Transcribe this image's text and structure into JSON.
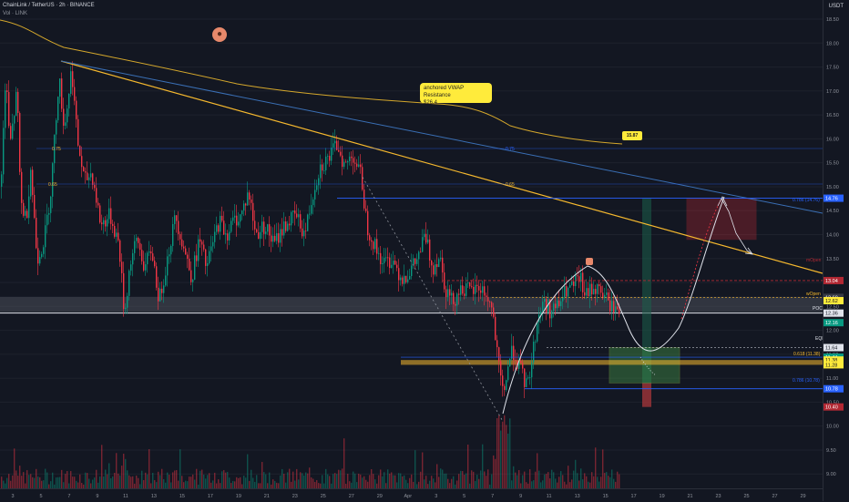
{
  "header": {
    "title": "ChainLink / TetherUS · 2h · BINANCE",
    "indicator": "Vol · LINK",
    "currency": "USDT"
  },
  "annotations": {
    "vwap_note_line1": "anchored VWAP Resistance",
    "vwap_note_line2": "$26.4",
    "vwap_value": "15.87",
    "level_075_left": "0.75",
    "level_065_left": "0.65",
    "level_075_mid": "0.75",
    "level_065_mid": "0.65",
    "fib_0786_top": "0.786 (14.76)",
    "fib_0618": "0.618 (11.38)",
    "fib_0786_bottom": "0.786 (10.78)",
    "mopen_top": "mOpen",
    "wopen": "wOpen",
    "poc": "POC",
    "eq": "EQL"
  },
  "price_tags": [
    {
      "label": "14.76",
      "color": "#2962ff"
    },
    {
      "label": "13.04",
      "color": "#b22833"
    },
    {
      "label": "12.69",
      "color": "#363a45"
    },
    {
      "label": "12.62",
      "color": "#ffeb3b"
    },
    {
      "label": "12.36",
      "color": "#e0e3eb"
    },
    {
      "label": "12.16",
      "color": "#089981"
    },
    {
      "label": "11.64",
      "color": "#e0e3eb"
    },
    {
      "label": "11.44",
      "color": "#089981"
    },
    {
      "label": "11.38",
      "color": "#ffeb3b"
    },
    {
      "label": "11.28",
      "color": "#ffeb3b"
    },
    {
      "label": "10.78",
      "color": "#2962ff"
    },
    {
      "label": "10.40",
      "color": "#b22833"
    }
  ],
  "colors": {
    "up": "#089981",
    "down": "#f23645",
    "vwap": "#d4a72c",
    "trend_orange": "#f5b82e",
    "trend_blue": "#3a6fb5",
    "fib_blue": "#2962ff",
    "sell_box": "#b22833",
    "buy_box": "#4caf50"
  },
  "chart_data": {
    "type": "candlestick",
    "symbol": "LINK/USDT",
    "timeframe": "2h",
    "y_axis_ticks": [
      18.5,
      18.0,
      17.5,
      17.0,
      16.5,
      16.0,
      15.5,
      15.0,
      14.5,
      14.0,
      13.5,
      13.0,
      12.5,
      12.0,
      11.5,
      11.0,
      10.5,
      10.0,
      9.5,
      9.0
    ],
    "x_axis_ticks": [
      "3",
      "5",
      "7",
      "9",
      "11",
      "13",
      "15",
      "17",
      "19",
      "21",
      "23",
      "25",
      "27",
      "29",
      "Apr",
      "3",
      "5",
      "7",
      "9",
      "11",
      "13",
      "15",
      "17",
      "19",
      "21",
      "23",
      "25",
      "27",
      "29"
    ],
    "ylim": [
      8.7,
      18.9
    ],
    "price_path": [
      [
        0,
        15.0
      ],
      [
        6,
        17.35
      ],
      [
        10,
        15.8
      ],
      [
        18,
        17.0
      ],
      [
        22,
        14.7
      ],
      [
        28,
        14.3
      ],
      [
        33,
        15.4
      ],
      [
        40,
        13.5
      ],
      [
        48,
        13.9
      ],
      [
        55,
        14.9
      ],
      [
        64,
        17.3
      ],
      [
        70,
        16.2
      ],
      [
        78,
        17.5
      ],
      [
        84,
        16.0
      ],
      [
        92,
        15.1
      ],
      [
        100,
        15.3
      ],
      [
        110,
        14.2
      ],
      [
        120,
        14.4
      ],
      [
        130,
        13.8
      ],
      [
        136,
        12.3
      ],
      [
        142,
        13.4
      ],
      [
        150,
        13.9
      ],
      [
        158,
        13.3
      ],
      [
        166,
        13.7
      ],
      [
        174,
        12.6
      ],
      [
        184,
        13.6
      ],
      [
        192,
        14.4
      ],
      [
        200,
        13.8
      ],
      [
        210,
        13.1
      ],
      [
        218,
        13.9
      ],
      [
        226,
        13.3
      ],
      [
        234,
        13.9
      ],
      [
        240,
        14.3
      ],
      [
        248,
        14.0
      ],
      [
        256,
        14.3
      ],
      [
        264,
        14.4
      ],
      [
        272,
        14.9
      ],
      [
        280,
        14.0
      ],
      [
        290,
        14.2
      ],
      [
        300,
        13.8
      ],
      [
        312,
        14.2
      ],
      [
        324,
        14.4
      ],
      [
        334,
        14.0
      ],
      [
        342,
        14.8
      ],
      [
        350,
        15.4
      ],
      [
        360,
        15.6
      ],
      [
        370,
        15.9
      ],
      [
        378,
        15.4
      ],
      [
        386,
        15.7
      ],
      [
        396,
        15.2
      ],
      [
        402,
        14.2
      ],
      [
        412,
        13.7
      ],
      [
        420,
        13.4
      ],
      [
        430,
        13.5
      ],
      [
        440,
        13.1
      ],
      [
        448,
        13.2
      ],
      [
        458,
        13.5
      ],
      [
        466,
        14.0
      ],
      [
        474,
        13.3
      ],
      [
        482,
        13.6
      ],
      [
        488,
        12.9
      ],
      [
        496,
        12.6
      ],
      [
        506,
        12.9
      ],
      [
        516,
        12.8
      ],
      [
        526,
        12.9
      ],
      [
        534,
        12.7
      ],
      [
        540,
        12.4
      ],
      [
        546,
        11.3
      ],
      [
        552,
        10.6
      ],
      [
        556,
        11.2
      ],
      [
        562,
        11.6
      ],
      [
        570,
        11.2
      ],
      [
        578,
        10.8
      ],
      [
        584,
        11.5
      ],
      [
        590,
        12.3
      ],
      [
        596,
        12.6
      ],
      [
        604,
        12.4
      ],
      [
        612,
        12.5
      ],
      [
        620,
        12.8
      ],
      [
        628,
        12.9
      ],
      [
        636,
        13.1
      ],
      [
        642,
        12.7
      ],
      [
        650,
        12.9
      ],
      [
        660,
        12.8
      ],
      [
        670,
        12.5
      ],
      [
        680,
        12.4
      ]
    ],
    "levels": [
      {
        "name": "0.786 (14.76)",
        "value": 14.76
      },
      {
        "name": "mOpen",
        "value": 13.04
      },
      {
        "name": "wOpen",
        "value": 12.69
      },
      {
        "name": "0.618 (11.38)",
        "value": 11.38
      },
      {
        "name": "0.786 (10.78)",
        "value": 10.78
      }
    ],
    "vwap_value": 15.87
  }
}
